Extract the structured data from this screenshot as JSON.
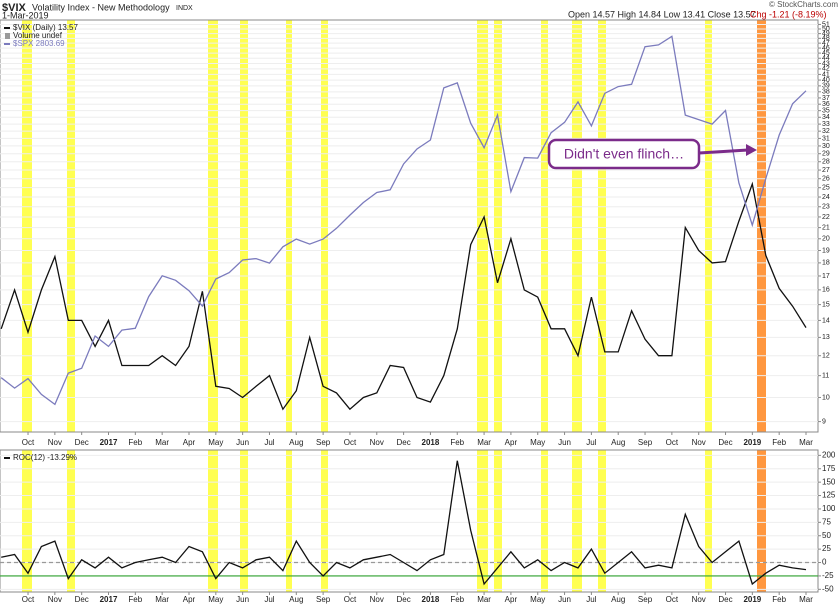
{
  "header": {
    "symbol": "$VIX",
    "name": "Volatility Index - New Methodology",
    "exchange": "INDX",
    "date": "1-Mar-2019",
    "quote": "Open 14.57 High 14.84 Low 13.41 Close 13.57",
    "change": "Chg -1.21 (-8.19%)",
    "credit": "© StockCharts.com"
  },
  "annotation": "Didn't even flinch…",
  "chart_data": [
    {
      "type": "line",
      "log_y": true,
      "grid": true,
      "legend": "upper left",
      "legend_note": "Volume undef",
      "categories": [
        null,
        null,
        "Oct",
        null,
        "Nov",
        null,
        "Dec",
        null,
        "2017",
        null,
        "Feb",
        null,
        "Mar",
        null,
        "Apr",
        null,
        "May",
        null,
        "Jun",
        null,
        "Jul",
        null,
        "Aug",
        null,
        "Sep",
        null,
        "Oct",
        null,
        "Nov",
        null,
        "Dec",
        null,
        "2018",
        null,
        "Feb",
        null,
        "Mar",
        null,
        "Apr",
        null,
        "May",
        null,
        "Jun",
        null,
        "Jul",
        null,
        "Aug",
        null,
        "Sep",
        null,
        "Oct",
        null,
        "Nov",
        null,
        "Dec",
        null,
        "2019",
        null,
        "Feb",
        null,
        "Mar"
      ],
      "ylim": [
        8.6,
        52
      ],
      "yticks": [
        9,
        10,
        11,
        12,
        13,
        14,
        15,
        16,
        17,
        18,
        19,
        20,
        21,
        22,
        23,
        24,
        25,
        26,
        27,
        28,
        29,
        30,
        31,
        32,
        33,
        34,
        35,
        36,
        37,
        38,
        39,
        40,
        41,
        42,
        43,
        44,
        45,
        46,
        47,
        48,
        49,
        50,
        51
      ],
      "y2lim": [
        2050,
        2960
      ],
      "series": [
        {
          "name": "$VIX (Daily) 13.57",
          "color": "#111111",
          "values": [
            13.5,
            16,
            13.3,
            16,
            18.5,
            14,
            14,
            12.5,
            14,
            11.5,
            11.5,
            11.5,
            12,
            11.5,
            12.5,
            15.9,
            10.5,
            10.4,
            10,
            10.5,
            11,
            9.5,
            10.3,
            13,
            10.5,
            10.2,
            9.5,
            10,
            10.2,
            11.5,
            11.4,
            10,
            9.8,
            11,
            13.5,
            19.5,
            22,
            16.5,
            20,
            16,
            15.5,
            13.5,
            13.5,
            12,
            15.5,
            12.2,
            12.2,
            14.6,
            12.9,
            12,
            12,
            21,
            19,
            18,
            18.1,
            21.6,
            25.4,
            18.6,
            16.1,
            14.9,
            13.57
          ]
        },
        {
          "name": "$SPX 2803.69",
          "color": "#7b7bbd",
          "axis": "y2",
          "values": [
            2170,
            2147,
            2168,
            2133,
            2111,
            2180,
            2191,
            2262,
            2239,
            2275,
            2279,
            2349,
            2395,
            2385,
            2362,
            2328,
            2388,
            2402,
            2430,
            2433,
            2423,
            2459,
            2476,
            2465,
            2476,
            2500,
            2529,
            2557,
            2579,
            2585,
            2642,
            2675,
            2695,
            2810,
            2821,
            2732,
            2678,
            2750,
            2581,
            2656,
            2655,
            2711,
            2734,
            2779,
            2726,
            2798,
            2813,
            2818,
            2901,
            2905,
            2924,
            2750,
            2740,
            2730,
            2760,
            2600,
            2507,
            2610,
            2706,
            2775,
            2803.69
          ]
        }
      ]
    },
    {
      "type": "line",
      "grid": true,
      "legend": "upper left",
      "categories": [
        null,
        null,
        "Oct",
        null,
        "Nov",
        null,
        "Dec",
        null,
        "2017",
        null,
        "Feb",
        null,
        "Mar",
        null,
        "Apr",
        null,
        "May",
        null,
        "Jun",
        null,
        "Jul",
        null,
        "Aug",
        null,
        "Sep",
        null,
        "Oct",
        null,
        "Nov",
        null,
        "Dec",
        null,
        "2018",
        null,
        "Feb",
        null,
        "Mar",
        null,
        "Apr",
        null,
        "May",
        null,
        "Jun",
        null,
        "Jul",
        null,
        "Aug",
        null,
        "Sep",
        null,
        "Oct",
        null,
        "Nov",
        null,
        "Dec",
        null,
        "2019",
        null,
        "Feb",
        null,
        "Mar"
      ],
      "ylim": [
        -55,
        210
      ],
      "yticks": [
        -50,
        -25,
        0,
        25,
        50,
        75,
        100,
        125,
        150,
        175,
        200
      ],
      "reference_lines": [
        {
          "value": 0,
          "color": "#999999"
        },
        {
          "value": -25,
          "color": "#2ca02c"
        }
      ],
      "series": [
        {
          "name": "ROC(12) -13.29%",
          "color": "#111111",
          "values": [
            10,
            15,
            -20,
            30,
            40,
            -30,
            5,
            -10,
            10,
            -10,
            0,
            5,
            10,
            0,
            30,
            20,
            -30,
            0,
            -10,
            5,
            10,
            -15,
            40,
            0,
            -25,
            0,
            -10,
            5,
            10,
            15,
            0,
            -15,
            5,
            15,
            190,
            60,
            -40,
            -10,
            20,
            -10,
            5,
            -15,
            0,
            -10,
            25,
            -20,
            0,
            20,
            -10,
            -5,
            -10,
            90,
            30,
            0,
            20,
            40,
            -40,
            -20,
            -5,
            -10,
            -13.29
          ]
        }
      ]
    }
  ]
}
